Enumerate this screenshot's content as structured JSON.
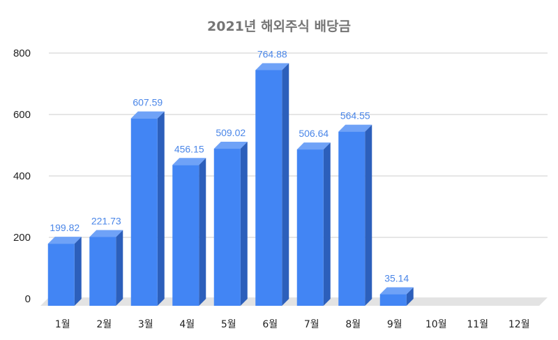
{
  "chart_data": {
    "type": "bar",
    "title": "2021년 해외주식 배당금",
    "categories": [
      "1월",
      "2월",
      "3월",
      "4월",
      "5월",
      "6월",
      "7월",
      "8월",
      "9월",
      "10월",
      "11월",
      "12월"
    ],
    "values": [
      199.82,
      221.73,
      607.59,
      456.15,
      509.02,
      764.88,
      506.64,
      564.55,
      35.14,
      null,
      null,
      null
    ],
    "data_labels": [
      "199.82",
      "221.73",
      "607.59",
      "456.15",
      "509.02",
      "764.88",
      "506.64",
      "564.55",
      "35.14",
      "",
      "",
      ""
    ],
    "ylim": [
      0,
      800
    ],
    "yticks": [
      "0",
      "200",
      "400",
      "600",
      "800"
    ],
    "xlabel": "",
    "ylabel": "",
    "grid": true,
    "style": "3d-bar",
    "colors": {
      "bar_front": "#4285f4",
      "bar_top": "#6fa2f7",
      "bar_side": "#2c5fbb",
      "data_label": "#4a86e8",
      "grid": "#d6d6d6",
      "floor": "#e3e3e3",
      "title": "#757575"
    }
  }
}
